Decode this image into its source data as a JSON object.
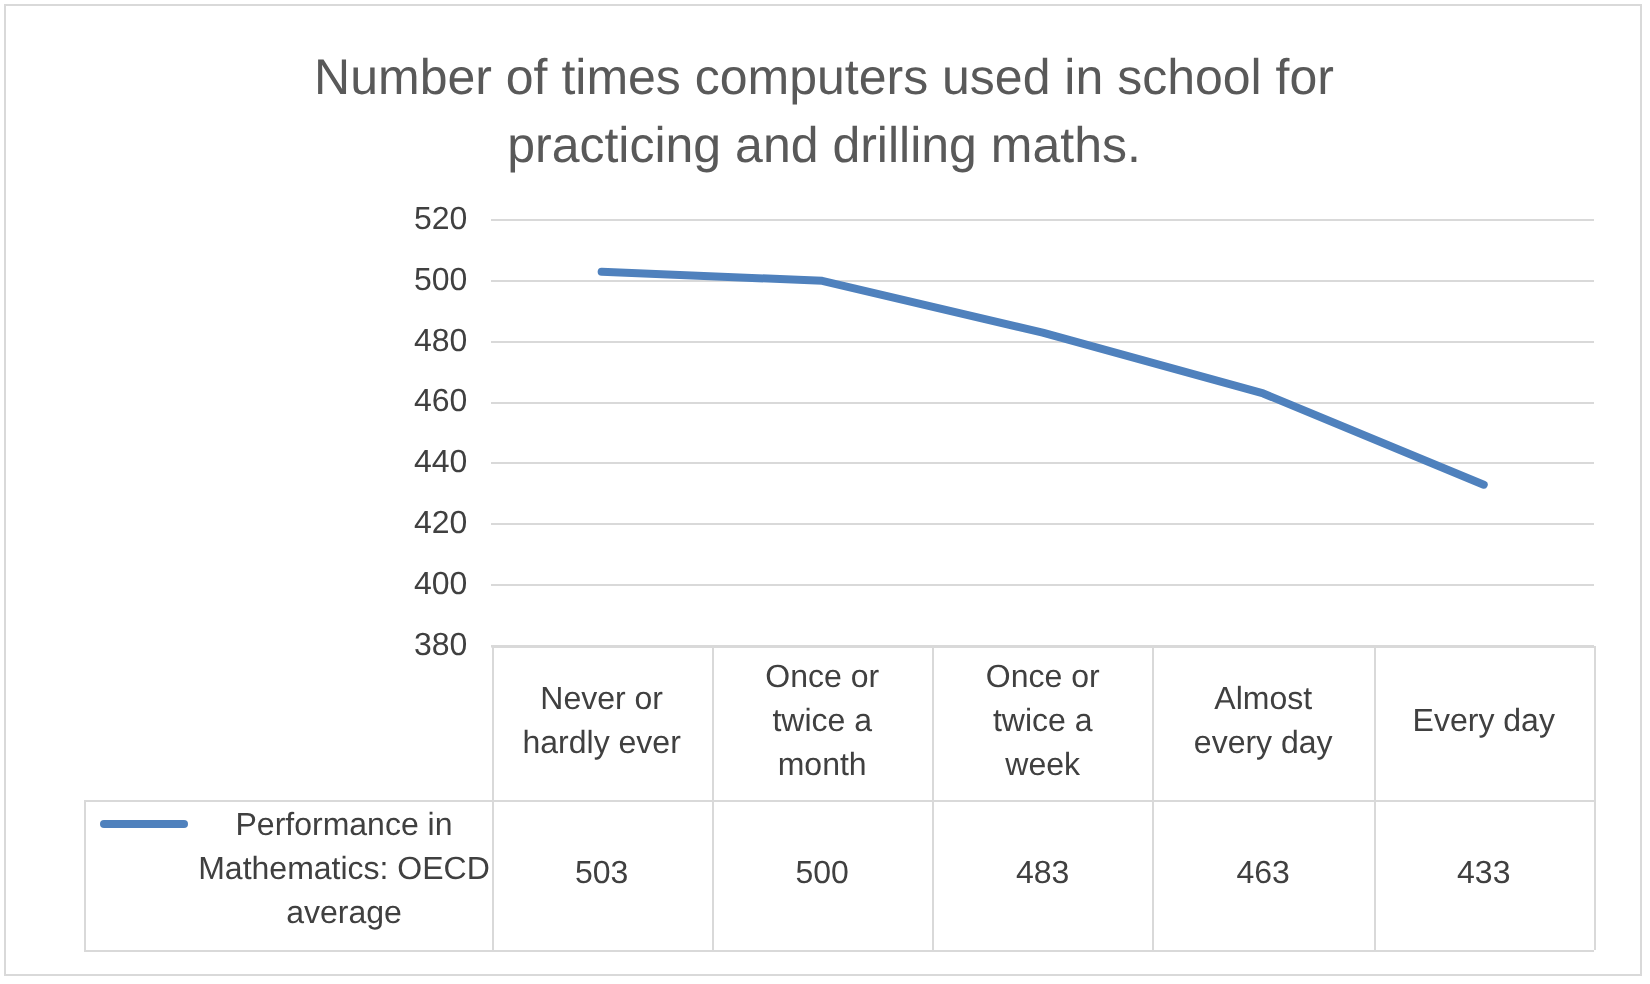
{
  "chart_data": {
    "type": "line",
    "title": "Number of times computers used in school for practicing and drilling maths.",
    "categories": [
      "Never or hardly ever",
      "Once or twice a month",
      "Once or twice a week",
      "Almost every day",
      "Every day"
    ],
    "series": [
      {
        "name": "Performance in Mathematics: OECD average",
        "color": "#4f81bd",
        "values": [
          503,
          500,
          483,
          463,
          433
        ]
      }
    ],
    "ylim": [
      380,
      520
    ],
    "yticks": [
      380,
      400,
      420,
      440,
      460,
      480,
      500,
      520
    ],
    "grid": "y",
    "legend": "bottom",
    "data_labels": true,
    "marker": "none",
    "line_style": "solid"
  }
}
